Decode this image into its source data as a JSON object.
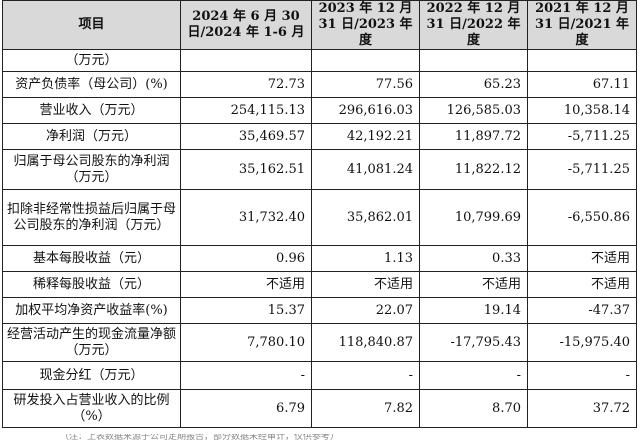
{
  "table": {
    "headers": [
      "项目",
      "2024 年 6 月 30 日/2024 年 1-6 月",
      "2023 年 12 月 31 日/2023 年度",
      "2022 年 12 月 31 日/2022 年度",
      "2021 年 12 月 31 日/2021 年度"
    ],
    "rows": [
      {
        "label": "（万元）",
        "values": [
          "",
          "",
          "",
          ""
        ]
      },
      {
        "label": "资产负债率（母公司）(%)",
        "values": [
          "72.73",
          "77.56",
          "65.23",
          "67.11"
        ]
      },
      {
        "label": "营业收入（万元）",
        "values": [
          "254,115.13",
          "296,616.03",
          "126,585.03",
          "10,358.14"
        ]
      },
      {
        "label": "净利润（万元）",
        "values": [
          "35,469.57",
          "42,192.21",
          "11,897.72",
          "-5,711.25"
        ]
      },
      {
        "label": "归属于母公司股东的净利润（万元）",
        "values": [
          "35,162.51",
          "41,081.24",
          "11,822.12",
          "-5,711.25"
        ]
      },
      {
        "label": "扣除非经常性损益后归属于母公司股东的净利润（万元）",
        "values": [
          "31,732.40",
          "35,862.01",
          "10,799.69",
          "-6,550.86"
        ]
      },
      {
        "label": "基本每股收益（元）",
        "values": [
          "0.96",
          "1.13",
          "0.33",
          "不适用"
        ]
      },
      {
        "label": "稀释每股收益（元）",
        "values": [
          "不适用",
          "不适用",
          "不适用",
          "不适用"
        ]
      },
      {
        "label": "加权平均净资产收益率(%)",
        "values": [
          "15.37",
          "22.07",
          "19.14",
          "-47.37"
        ]
      },
      {
        "label": "经营活动产生的现金流量净额（万元）",
        "values": [
          "7,780.10",
          "118,840.87",
          "-17,795.43",
          "-15,975.40"
        ]
      },
      {
        "label": "现金分红（万元）",
        "values": [
          "-",
          "-",
          "-",
          "-"
        ]
      },
      {
        "label": "研发投入占营业收入的比例（%）",
        "values": [
          "6.79",
          "7.82",
          "8.70",
          "37.72"
        ]
      }
    ]
  },
  "trailing_text": "（注：上表数据来源于公司定期报告，部分数据未经审计，仅供参考）"
}
